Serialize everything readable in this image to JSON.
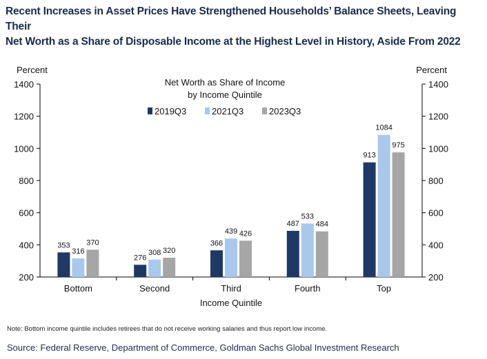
{
  "headline": {
    "line1": "Recent Increases in Asset Prices Have Strengthened Households’ Balance Sheets, Leaving Their",
    "line2": "Net Worth as a Share of Disposable Income at the Highest Level in History, Aside From 2022"
  },
  "note": "Note: Bottom income quintile includes retirees that do not receive working salaries and thus report low income.",
  "source": "Source: Federal Reserve, Department of Commerce, Goldman Sachs Global Investment Research",
  "chart_data": {
    "type": "bar",
    "title_line1": "Net Worth as Share of Income",
    "title_line2": "by Income Quintile",
    "xlabel": "Income Quintile",
    "ylabel_left": "Percent",
    "ylabel_right": "Percent",
    "ylim": [
      200,
      1400
    ],
    "yticks": [
      200,
      400,
      600,
      800,
      1000,
      1200,
      1400
    ],
    "legend_position": "top-center",
    "grid": false,
    "categories": [
      "Bottom",
      "Second",
      "Third",
      "Fourth",
      "Top"
    ],
    "series": [
      {
        "name": "2019Q3",
        "color": "#1f3864",
        "values": [
          353,
          276,
          366,
          487,
          913
        ]
      },
      {
        "name": "2021Q3",
        "color": "#a9c8ec",
        "values": [
          316,
          308,
          439,
          533,
          1084
        ]
      },
      {
        "name": "2023Q3",
        "color": "#a6a6a6",
        "values": [
          370,
          320,
          426,
          484,
          975
        ]
      }
    ]
  }
}
